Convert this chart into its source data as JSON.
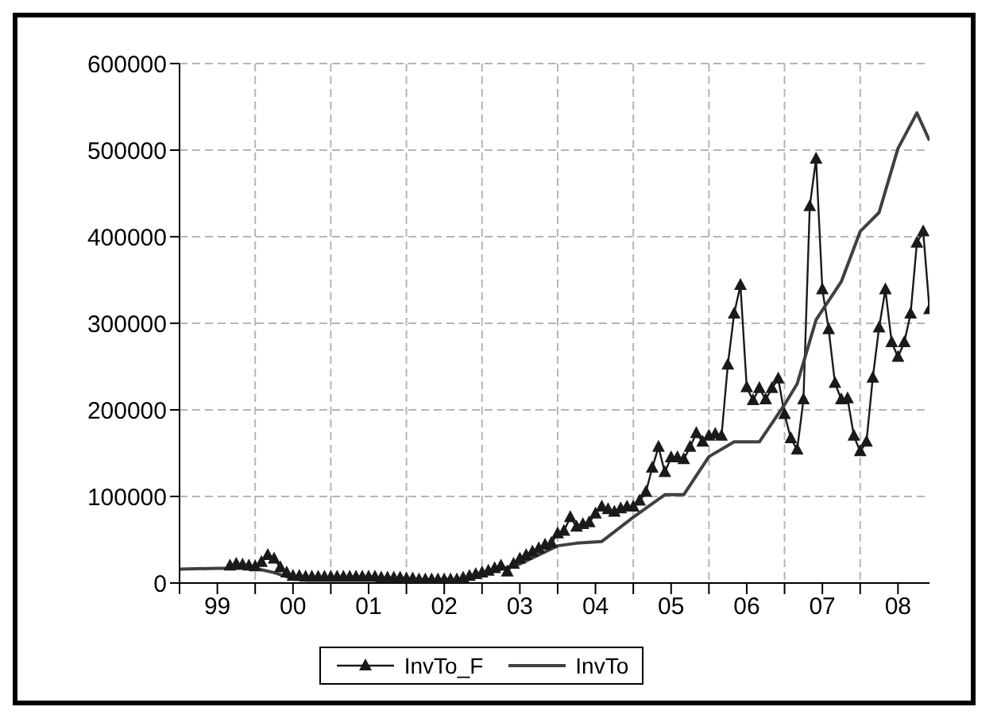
{
  "chart_data": {
    "type": "line",
    "xlim": [
      "1999-01",
      "2008-12"
    ],
    "ylim": [
      0,
      600000
    ],
    "yticks": [
      0,
      100000,
      200000,
      300000,
      400000,
      500000,
      600000
    ],
    "xticks": [
      {
        "value": "1999-01",
        "label": null
      },
      {
        "value": "1999-07",
        "label": "99"
      },
      {
        "value": "2000-01",
        "label": null
      },
      {
        "value": "2000-07",
        "label": "00"
      },
      {
        "value": "2001-01",
        "label": null
      },
      {
        "value": "2001-07",
        "label": "01"
      },
      {
        "value": "2002-01",
        "label": null
      },
      {
        "value": "2002-07",
        "label": "02"
      },
      {
        "value": "2003-01",
        "label": null
      },
      {
        "value": "2003-07",
        "label": "03"
      },
      {
        "value": "2004-01",
        "label": null
      },
      {
        "value": "2004-07",
        "label": "04"
      },
      {
        "value": "2005-01",
        "label": null
      },
      {
        "value": "2005-07",
        "label": "05"
      },
      {
        "value": "2006-01",
        "label": null
      },
      {
        "value": "2006-07",
        "label": "06"
      },
      {
        "value": "2007-01",
        "label": null
      },
      {
        "value": "2007-07",
        "label": "07"
      },
      {
        "value": "2008-01",
        "label": null
      },
      {
        "value": "2008-07",
        "label": "08"
      }
    ],
    "grid": true,
    "legend": "bottom",
    "series": [
      {
        "name": "InvTo_F",
        "color": "#1a1a1a",
        "marker": "triangle",
        "x": [
          "1999-09",
          "1999-10",
          "1999-11",
          "1999-12",
          "2000-01",
          "2000-02",
          "2000-03",
          "2000-04",
          "2000-05",
          "2000-06",
          "2000-07",
          "2000-08",
          "2000-09",
          "2000-10",
          "2000-11",
          "2000-12",
          "2001-01",
          "2001-02",
          "2001-03",
          "2001-04",
          "2001-05",
          "2001-06",
          "2001-07",
          "2001-08",
          "2001-09",
          "2001-10",
          "2001-11",
          "2001-12",
          "2002-01",
          "2002-02",
          "2002-03",
          "2002-04",
          "2002-05",
          "2002-06",
          "2002-07",
          "2002-08",
          "2002-09",
          "2002-10",
          "2002-11",
          "2002-12",
          "2003-01",
          "2003-02",
          "2003-03",
          "2003-04",
          "2003-05",
          "2003-06",
          "2003-07",
          "2003-08",
          "2003-09",
          "2003-10",
          "2003-11",
          "2003-12",
          "2004-01",
          "2004-02",
          "2004-03",
          "2004-04",
          "2004-05",
          "2004-06",
          "2004-07",
          "2004-08",
          "2004-09",
          "2004-10",
          "2004-11",
          "2004-12",
          "2005-01",
          "2005-02",
          "2005-03",
          "2005-04",
          "2005-05",
          "2005-06",
          "2005-07",
          "2005-08",
          "2005-09",
          "2005-10",
          "2005-11",
          "2005-12",
          "2006-01",
          "2006-02",
          "2006-03",
          "2006-04",
          "2006-05",
          "2006-06",
          "2006-07",
          "2006-08",
          "2006-09",
          "2006-10",
          "2006-11",
          "2006-12",
          "2007-01",
          "2007-02",
          "2007-03",
          "2007-04",
          "2007-05",
          "2007-06",
          "2007-07",
          "2007-08",
          "2007-09",
          "2007-10",
          "2007-11",
          "2007-12",
          "2008-01",
          "2008-02",
          "2008-03",
          "2008-04",
          "2008-05",
          "2008-06",
          "2008-07",
          "2008-08",
          "2008-09",
          "2008-10",
          "2008-11",
          "2008-12"
        ],
        "values": [
          20000,
          22000,
          21000,
          20000,
          19000,
          24000,
          32000,
          28000,
          18000,
          12000,
          8000,
          8000,
          7000,
          7000,
          7000,
          7000,
          7000,
          7000,
          7000,
          7000,
          7000,
          7000,
          7000,
          7000,
          6000,
          6000,
          6000,
          6000,
          5000,
          5000,
          4000,
          4000,
          4000,
          4000,
          4000,
          4000,
          4000,
          6000,
          8000,
          10000,
          12000,
          14000,
          17000,
          20000,
          13000,
          22000,
          28000,
          32000,
          36000,
          40000,
          44000,
          46000,
          57000,
          60000,
          76000,
          65000,
          68000,
          70000,
          80000,
          88000,
          85000,
          82000,
          86000,
          88000,
          88000,
          95000,
          105000,
          133000,
          157000,
          128000,
          145000,
          145000,
          143000,
          157000,
          173000,
          163000,
          170000,
          172000,
          170000,
          252000,
          311000,
          344000,
          226000,
          211000,
          225000,
          212000,
          225000,
          236000,
          195000,
          167000,
          154000,
          212000,
          435000,
          490000,
          339000,
          293000,
          231000,
          212000,
          213000,
          170000,
          152000,
          163000,
          237000,
          295000,
          339000,
          278000,
          261000,
          278000,
          311000,
          393000,
          406000,
          316000
        ]
      },
      {
        "name": "InvTo",
        "color": "#404040",
        "marker": "none",
        "x": [
          "1999-01",
          "1999-07",
          "2000-01",
          "2000-04",
          "2000-07",
          "2001-01",
          "2001-07",
          "2002-01",
          "2002-07",
          "2002-10",
          "2003-01",
          "2003-07",
          "2004-01",
          "2004-04",
          "2004-08",
          "2005-01",
          "2005-06",
          "2005-09",
          "2006-01",
          "2006-05",
          "2006-09",
          "2007-01",
          "2007-03",
          "2007-06",
          "2007-10",
          "2008-01",
          "2008-04",
          "2008-07",
          "2008-10",
          "2008-12"
        ],
        "values": [
          16000,
          17000,
          17000,
          12000,
          5000,
          5000,
          4000,
          3000,
          3000,
          4000,
          10000,
          22000,
          43000,
          46000,
          48000,
          76000,
          102000,
          102000,
          146000,
          163000,
          163000,
          206000,
          230000,
          304000,
          348000,
          406000,
          428000,
          502000,
          543000,
          511000
        ]
      }
    ]
  }
}
